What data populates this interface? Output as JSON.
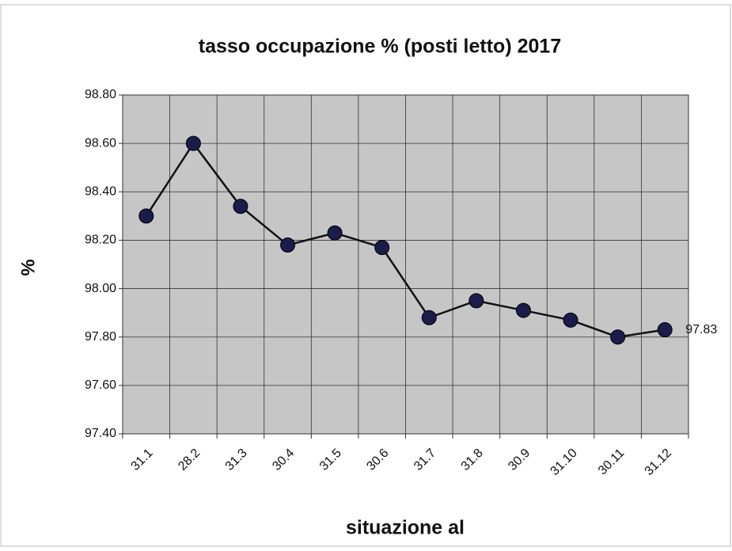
{
  "chart_data": {
    "type": "line",
    "title": "tasso occupazione % (posti letto) 2017",
    "x_label": "situazione al",
    "y_label": "%",
    "categories": [
      "31.1",
      "28.2",
      "31.3",
      "30.4",
      "31.5",
      "30.6",
      "31.7",
      "31.8",
      "30.9",
      "31.10",
      "30.11",
      "31.12"
    ],
    "series": [
      {
        "name": "tasso occupazione",
        "color": "#1c1c4a",
        "values": [
          98.3,
          98.6,
          98.34,
          98.18,
          98.23,
          98.17,
          97.88,
          97.95,
          97.91,
          97.87,
          97.8,
          97.83
        ]
      }
    ],
    "ylim": [
      97.4,
      98.8
    ],
    "yticks": [
      {
        "value": 97.4,
        "label": "97.40"
      },
      {
        "value": 97.6,
        "label": "97.60"
      },
      {
        "value": 97.8,
        "label": "97.80"
      },
      {
        "value": 98.0,
        "label": "98.00"
      },
      {
        "value": 98.2,
        "label": "98.20"
      },
      {
        "value": 98.4,
        "label": "98.40"
      },
      {
        "value": 98.6,
        "label": "98.60"
      },
      {
        "value": 98.8,
        "label": "98.80"
      }
    ],
    "grid": true
  }
}
